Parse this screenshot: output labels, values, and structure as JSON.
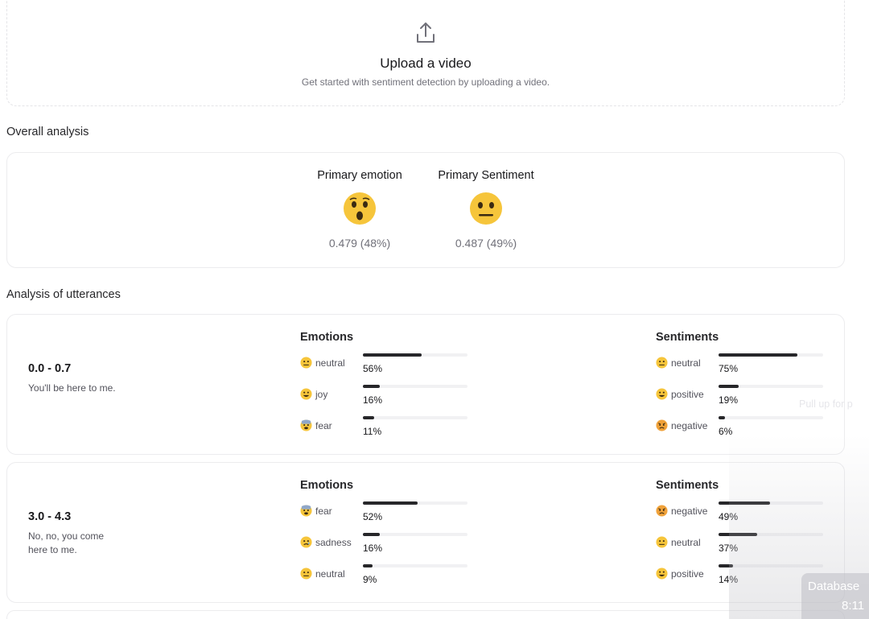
{
  "upload": {
    "icon": "upload-icon",
    "title": "Upload a video",
    "subtitle": "Get started with sentiment detection by uploading a video."
  },
  "overall": {
    "heading": "Overall analysis",
    "emotion": {
      "label": "Primary emotion",
      "emoji": "astonished-face-icon",
      "value": "0.479 (48%)"
    },
    "sentiment": {
      "label": "Primary Sentiment",
      "emoji": "neutral-face-icon",
      "value": "0.487 (49%)"
    }
  },
  "utterances": {
    "heading": "Analysis of utterances",
    "items": [
      {
        "range": "0.0 - 0.7",
        "text": "You'll be here to me.",
        "emotions_title": "Emotions",
        "sentiments_title": "Sentiments",
        "emotions": [
          {
            "label": "neutral",
            "emoji": "neutral-face-icon",
            "pct": "56%",
            "value": 0.56
          },
          {
            "label": "joy",
            "emoji": "grinning-face-icon",
            "pct": "16%",
            "value": 0.16
          },
          {
            "label": "fear",
            "emoji": "fearful-face-icon",
            "pct": "11%",
            "value": 0.11
          }
        ],
        "sentiments": [
          {
            "label": "neutral",
            "emoji": "neutral-face-icon",
            "pct": "75%",
            "value": 0.75
          },
          {
            "label": "positive",
            "emoji": "grinning-face-icon",
            "pct": "19%",
            "value": 0.19
          },
          {
            "label": "negative",
            "emoji": "angry-face-icon",
            "pct": "6%",
            "value": 0.06
          }
        ]
      },
      {
        "range": "3.0 - 4.3",
        "text": "No, no, you come here to me.",
        "emotions_title": "Emotions",
        "sentiments_title": "Sentiments",
        "emotions": [
          {
            "label": "fear",
            "emoji": "fearful-face-icon",
            "pct": "52%",
            "value": 0.52
          },
          {
            "label": "sadness",
            "emoji": "sad-face-icon",
            "pct": "16%",
            "value": 0.16
          },
          {
            "label": "neutral",
            "emoji": "neutral-face-icon",
            "pct": "9%",
            "value": 0.09
          }
        ],
        "sentiments": [
          {
            "label": "negative",
            "emoji": "angry-face-icon",
            "pct": "49%",
            "value": 0.49
          },
          {
            "label": "neutral",
            "emoji": "neutral-face-icon",
            "pct": "37%",
            "value": 0.37
          },
          {
            "label": "positive",
            "emoji": "grinning-face-icon",
            "pct": "14%",
            "value": 0.14
          }
        ]
      }
    ]
  },
  "overlay": {
    "pull_hint": "Pull up for p",
    "db_title": "Database",
    "db_time": "8:11"
  },
  "colors": {
    "bar_fill": "#27272a",
    "bar_track": "#f1f1f3",
    "emoji_yellow": "#f6c53b",
    "card_border": "#ececee"
  }
}
